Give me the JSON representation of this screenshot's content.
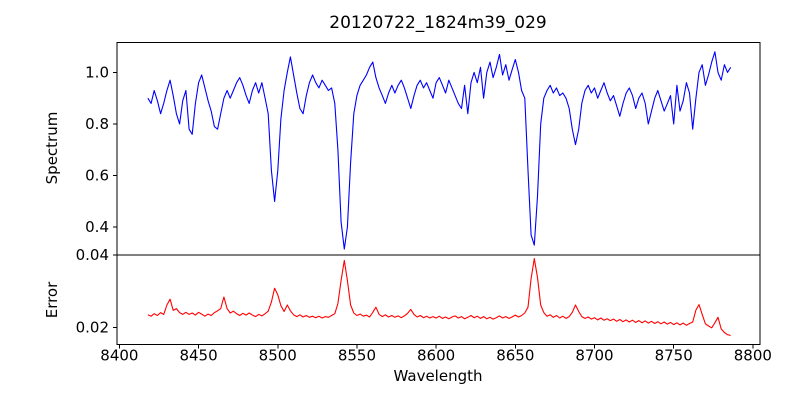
{
  "figure": {
    "background": "#ffffff",
    "text_color": "#000000",
    "spine_color": "#000000"
  },
  "chart_data": {
    "type": "line",
    "title": "20120722_1824m39_029",
    "xlabel": "Wavelength",
    "x_start": 8418,
    "x_step": 2,
    "xlim": [
      8398.5,
      8804.5
    ],
    "x_ticks": [
      8400,
      8450,
      8500,
      8550,
      8600,
      8650,
      8700,
      8750,
      8800
    ],
    "x_tick_labels": [
      "8400",
      "8450",
      "8500",
      "8550",
      "8600",
      "8650",
      "8700",
      "8750",
      "8800"
    ],
    "grid": false,
    "legend": "none",
    "panels": [
      {
        "name": "spectrum",
        "ylabel": "Spectrum",
        "line_color": "#0000ff",
        "ylim": [
          0.292,
          1.116
        ],
        "yticks": [
          0.4,
          0.6,
          0.8,
          1.0
        ],
        "ytick_labels": [
          "0.4",
          "0.6",
          "0.8",
          "1.0"
        ],
        "features": "absorption lines near 8498, 8542, 8662, 8688",
        "values": [
          0.9,
          0.88,
          0.93,
          0.89,
          0.84,
          0.88,
          0.93,
          0.97,
          0.91,
          0.84,
          0.8,
          0.89,
          0.93,
          0.78,
          0.76,
          0.88,
          0.96,
          0.99,
          0.94,
          0.89,
          0.85,
          0.79,
          0.78,
          0.84,
          0.9,
          0.93,
          0.9,
          0.93,
          0.96,
          0.98,
          0.95,
          0.91,
          0.88,
          0.93,
          0.96,
          0.92,
          0.96,
          0.9,
          0.84,
          0.62,
          0.5,
          0.62,
          0.82,
          0.93,
          1.0,
          1.06,
          0.99,
          0.92,
          0.86,
          0.84,
          0.91,
          0.96,
          0.99,
          0.96,
          0.94,
          0.97,
          0.95,
          0.93,
          0.94,
          0.88,
          0.7,
          0.42,
          0.315,
          0.4,
          0.65,
          0.84,
          0.91,
          0.95,
          0.97,
          0.99,
          1.02,
          1.04,
          0.98,
          0.94,
          0.91,
          0.88,
          0.92,
          0.95,
          0.92,
          0.95,
          0.97,
          0.94,
          0.9,
          0.86,
          0.91,
          0.95,
          0.97,
          0.94,
          0.96,
          0.93,
          0.9,
          0.96,
          0.98,
          0.95,
          0.92,
          0.97,
          0.94,
          0.91,
          0.88,
          0.86,
          0.95,
          0.84,
          0.96,
          1.0,
          0.96,
          1.02,
          0.9,
          1.0,
          1.04,
          0.98,
          1.02,
          1.07,
          0.99,
          1.03,
          0.97,
          1.01,
          1.05,
          1.0,
          0.93,
          0.9,
          0.62,
          0.37,
          0.33,
          0.52,
          0.8,
          0.9,
          0.93,
          0.95,
          0.92,
          0.94,
          0.91,
          0.92,
          0.9,
          0.86,
          0.78,
          0.72,
          0.78,
          0.88,
          0.93,
          0.95,
          0.92,
          0.94,
          0.9,
          0.93,
          0.96,
          0.92,
          0.89,
          0.91,
          0.87,
          0.83,
          0.88,
          0.92,
          0.94,
          0.91,
          0.86,
          0.9,
          0.92,
          0.88,
          0.8,
          0.85,
          0.9,
          0.93,
          0.89,
          0.85,
          0.88,
          0.91,
          0.8,
          0.95,
          0.85,
          0.89,
          0.96,
          0.92,
          0.78,
          0.9,
          1.0,
          1.03,
          0.95,
          0.99,
          1.04,
          1.08,
          1.0,
          0.97,
          1.03,
          1.0,
          1.02
        ]
      },
      {
        "name": "error",
        "ylabel": "Error",
        "line_color": "#ff0000",
        "ylim": [
          0.0153,
          0.04
        ],
        "yticks": [
          0.02,
          0.04
        ],
        "ytick_labels": [
          "0.02",
          "0.04"
        ],
        "features": "error peaks near 8498, 8542, 8662, 8688; baseline declines from 0.024 to 0.018",
        "values": [
          0.0235,
          0.0231,
          0.0238,
          0.0233,
          0.0241,
          0.0236,
          0.0262,
          0.0278,
          0.0247,
          0.0252,
          0.0241,
          0.0236,
          0.0242,
          0.0236,
          0.024,
          0.0234,
          0.0242,
          0.0237,
          0.0231,
          0.0237,
          0.0233,
          0.0241,
          0.0246,
          0.0252,
          0.0284,
          0.0252,
          0.024,
          0.0245,
          0.0238,
          0.0233,
          0.0239,
          0.0234,
          0.024,
          0.0234,
          0.023,
          0.0236,
          0.0232,
          0.0238,
          0.0245,
          0.027,
          0.0308,
          0.029,
          0.026,
          0.0244,
          0.0262,
          0.0246,
          0.0235,
          0.023,
          0.0235,
          0.0229,
          0.0233,
          0.0228,
          0.0231,
          0.0227,
          0.0231,
          0.0226,
          0.023,
          0.0228,
          0.0233,
          0.0238,
          0.0266,
          0.033,
          0.0385,
          0.033,
          0.0262,
          0.024,
          0.0233,
          0.0237,
          0.0231,
          0.0234,
          0.0229,
          0.0242,
          0.0256,
          0.0236,
          0.023,
          0.0235,
          0.0229,
          0.0233,
          0.0228,
          0.0232,
          0.0227,
          0.0232,
          0.0239,
          0.025,
          0.0236,
          0.0229,
          0.0233,
          0.0227,
          0.0231,
          0.0226,
          0.023,
          0.0226,
          0.0231,
          0.0225,
          0.0229,
          0.0224,
          0.0229,
          0.0232,
          0.0226,
          0.023,
          0.0224,
          0.0228,
          0.0233,
          0.0227,
          0.0231,
          0.0225,
          0.023,
          0.0224,
          0.0228,
          0.0223,
          0.0227,
          0.0232,
          0.0226,
          0.023,
          0.0225,
          0.0229,
          0.0234,
          0.0229,
          0.0233,
          0.024,
          0.0256,
          0.0335,
          0.039,
          0.0338,
          0.0262,
          0.0241,
          0.0231,
          0.0235,
          0.0228,
          0.0233,
          0.0226,
          0.0231,
          0.0225,
          0.023,
          0.0242,
          0.0262,
          0.0244,
          0.023,
          0.0225,
          0.0229,
          0.0223,
          0.0227,
          0.0221,
          0.0226,
          0.022,
          0.0224,
          0.0219,
          0.0223,
          0.0217,
          0.0222,
          0.0216,
          0.0221,
          0.0215,
          0.022,
          0.0214,
          0.0219,
          0.0213,
          0.0218,
          0.0212,
          0.0217,
          0.0211,
          0.0216,
          0.021,
          0.0215,
          0.0209,
          0.0214,
          0.0208,
          0.0213,
          0.0207,
          0.0212,
          0.0206,
          0.0211,
          0.0215,
          0.0248,
          0.0263,
          0.0236,
          0.021,
          0.0204,
          0.0199,
          0.0213,
          0.0228,
          0.0196,
          0.0186,
          0.018,
          0.0178
        ]
      }
    ]
  }
}
